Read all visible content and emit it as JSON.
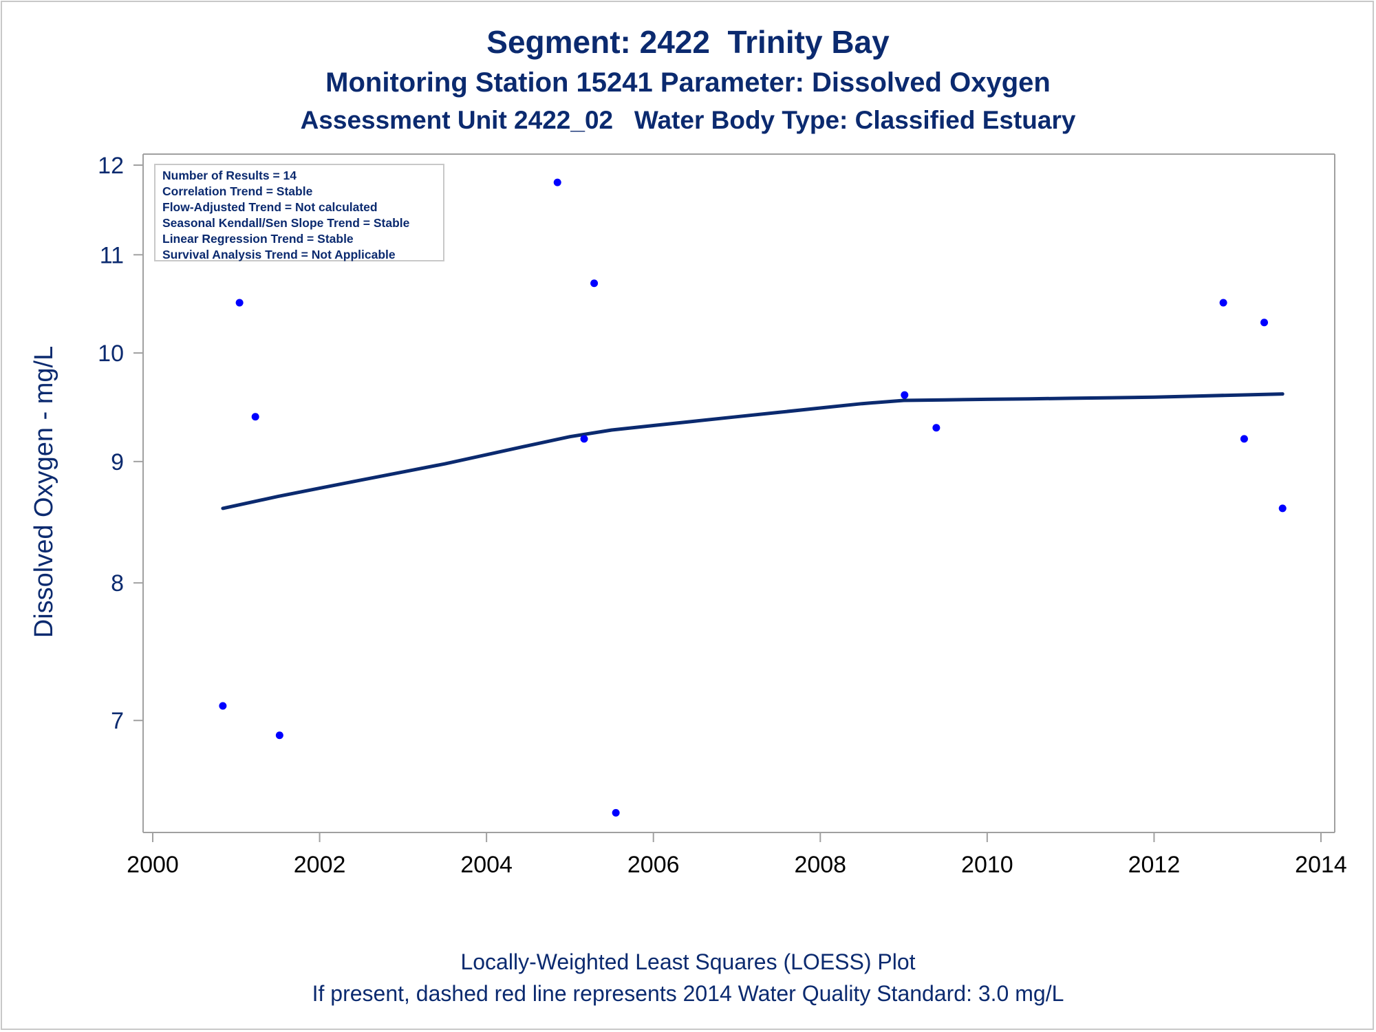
{
  "titles": {
    "line1": "Segment: 2422  Trinity Bay",
    "line2": "Monitoring Station 15241 Parameter: Dissolved Oxygen",
    "line3": "Assessment Unit 2422_02   Water Body Type: Classified Estuary"
  },
  "footnotes": {
    "line1": "Locally-Weighted Least Squares (LOESS) Plot",
    "line2": "If present, dashed red line represents 2014 Water Quality Standard: 3.0 mg/L"
  },
  "stats": [
    "Number of Results = 14",
    "Correlation Trend = Stable",
    "Flow-Adjusted Trend = Not calculated",
    "Seasonal Kendall/Sen Slope Trend = Stable",
    "Linear Regression Trend = Stable",
    "Survival Analysis Trend = Not Applicable"
  ],
  "colors": {
    "text": "#0b2a6f",
    "axis_text": "#0b2a6f",
    "x_tick_text": "#000000",
    "points": "#0000ff",
    "loess_line": "#0b2a6f",
    "frame": "#a0a0a0"
  },
  "chart_data": {
    "type": "scatter",
    "ylabel": "Dissolved Oxygen - mg/L",
    "xlabel": "",
    "xlim": [
      2000,
      2014
    ],
    "ylim": [
      6.3,
      12
    ],
    "y_scale": "log",
    "x_ticks": [
      2000,
      2002,
      2004,
      2006,
      2008,
      2010,
      2012,
      2014
    ],
    "y_ticks": [
      7,
      8,
      9,
      10,
      11,
      12
    ],
    "grid": false,
    "legend": "inset top-left statistics box",
    "series": [
      {
        "kind": "points",
        "x": [
          2000.84,
          2001.04,
          2001.23,
          2001.52,
          2004.85,
          2005.17,
          2005.29,
          2005.55,
          2009.01,
          2009.39,
          2012.83,
          2013.08,
          2013.32,
          2013.54
        ],
        "y": [
          7.1,
          10.5,
          9.4,
          6.9,
          11.8,
          9.2,
          10.7,
          6.4,
          9.6,
          9.3,
          10.5,
          9.2,
          10.3,
          8.6
        ]
      },
      {
        "kind": "loess",
        "x": [
          2000.84,
          2001.5,
          2002.0,
          2002.5,
          2003.0,
          2003.5,
          2004.0,
          2004.5,
          2005.0,
          2005.5,
          2006.0,
          2006.5,
          2007.0,
          2007.5,
          2008.0,
          2008.5,
          2009.0,
          2009.5,
          2010.0,
          2010.5,
          2011.0,
          2011.5,
          2012.0,
          2012.5,
          2013.0,
          2013.54
        ],
        "y": [
          8.6,
          8.7,
          8.77,
          8.84,
          8.91,
          8.98,
          9.06,
          9.14,
          9.22,
          9.28,
          9.32,
          9.36,
          9.4,
          9.44,
          9.48,
          9.52,
          9.55,
          9.555,
          9.56,
          9.565,
          9.57,
          9.575,
          9.58,
          9.59,
          9.6,
          9.61
        ]
      }
    ]
  }
}
